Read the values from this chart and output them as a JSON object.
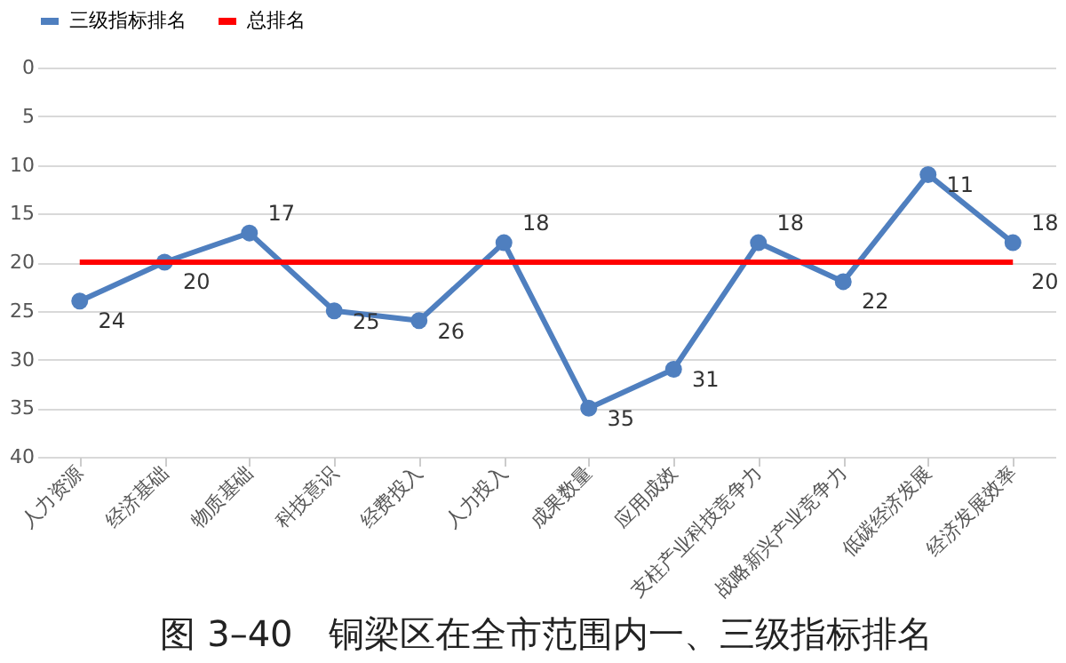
{
  "chart_data": {
    "type": "line",
    "categories": [
      "人力资源",
      "经济基础",
      "物质基础",
      "科技意识",
      "经费投入",
      "人力投入",
      "成果数量",
      "应用成效",
      "支柱产业科技竞争力",
      "战略新兴产业竞争力",
      "低碳经济发展",
      "经济发展效率"
    ],
    "series": [
      {
        "name": "三级指标排名",
        "color": "#4f7fbf",
        "marker": "circle",
        "values": [
          24,
          20,
          17,
          25,
          26,
          18,
          35,
          31,
          18,
          22,
          11,
          18
        ],
        "value_labels": [
          "24",
          "20",
          "17",
          "25",
          "26",
          "18",
          "35",
          "31",
          "18",
          "22",
          "11",
          "18"
        ]
      },
      {
        "name": "总排名",
        "color": "#ff0000",
        "marker": "none",
        "values": [
          20,
          20,
          20,
          20,
          20,
          20,
          20,
          20,
          20,
          20,
          20,
          20
        ],
        "value_labels": [
          null,
          null,
          null,
          null,
          null,
          null,
          null,
          null,
          null,
          null,
          null,
          "20"
        ]
      }
    ],
    "ylim": [
      40,
      0
    ],
    "yticks": [
      0,
      5,
      10,
      15,
      20,
      25,
      30,
      35,
      40
    ],
    "grid": "y",
    "legend": "top",
    "line_style": "solid",
    "annotations": [
      "图 3–40　铜梁区在全市范围内一、三级指标排名"
    ]
  }
}
